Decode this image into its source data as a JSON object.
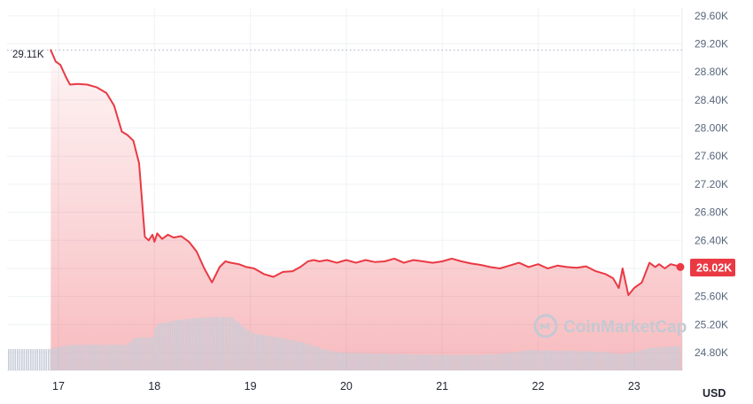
{
  "chart_data": {
    "type": "area",
    "x_tick_labels": [
      "17",
      "18",
      "19",
      "20",
      "21",
      "22",
      "23"
    ],
    "y_tick_labels": [
      "29.60K",
      "29.20K",
      "28.80K",
      "28.40K",
      "28.00K",
      "27.60K",
      "27.20K",
      "26.80K",
      "26.40K",
      "26.00K",
      "25.60K",
      "25.20K",
      "24.80K"
    ],
    "ylim": [
      24.8,
      29.6
    ],
    "y_unit_label": "USD",
    "start_value_label": "29.11K",
    "last_value_label": "26.02K",
    "grid": true,
    "series": [
      {
        "metric": "price_k_usd",
        "x_day": [
          16.92,
          16.97,
          17.02,
          17.08,
          17.12,
          17.2,
          17.3,
          17.4,
          17.5,
          17.58,
          17.66,
          17.72,
          17.78,
          17.84,
          17.9,
          17.94,
          17.98,
          18.0,
          18.03,
          18.08,
          18.14,
          18.2,
          18.28,
          18.36,
          18.44,
          18.52,
          18.6,
          18.68,
          18.74,
          18.8,
          18.88,
          18.96,
          19.04,
          19.14,
          19.24,
          19.34,
          19.44,
          19.52,
          19.6,
          19.66,
          19.72,
          19.8,
          19.9,
          20.0,
          20.1,
          20.2,
          20.3,
          20.4,
          20.5,
          20.6,
          20.7,
          20.8,
          20.9,
          21.0,
          21.1,
          21.2,
          21.3,
          21.4,
          21.5,
          21.6,
          21.7,
          21.8,
          21.9,
          22.0,
          22.1,
          22.2,
          22.3,
          22.4,
          22.5,
          22.6,
          22.7,
          22.78,
          22.84,
          22.88,
          22.94,
          23.0,
          23.08,
          23.16,
          23.22,
          23.26,
          23.32,
          23.38,
          23.44,
          23.5
        ],
        "values": [
          29.11,
          28.95,
          28.9,
          28.72,
          28.62,
          28.63,
          28.62,
          28.58,
          28.5,
          28.32,
          27.95,
          27.9,
          27.82,
          27.5,
          26.45,
          26.4,
          26.48,
          26.38,
          26.5,
          26.42,
          26.48,
          26.44,
          26.46,
          26.38,
          26.24,
          26.0,
          25.8,
          26.02,
          26.1,
          26.08,
          26.06,
          26.02,
          26.0,
          25.92,
          25.88,
          25.95,
          25.96,
          26.02,
          26.1,
          26.12,
          26.1,
          26.12,
          26.08,
          26.12,
          26.08,
          26.12,
          26.09,
          26.1,
          26.14,
          26.08,
          26.12,
          26.1,
          26.08,
          26.1,
          26.14,
          26.1,
          26.07,
          26.05,
          26.02,
          26.0,
          26.04,
          26.08,
          26.02,
          26.06,
          26.0,
          26.04,
          26.02,
          26.01,
          26.03,
          25.96,
          25.92,
          25.86,
          25.72,
          26.0,
          25.62,
          25.72,
          25.8,
          26.08,
          26.02,
          26.06,
          26.0,
          26.06,
          26.04,
          26.02
        ]
      },
      {
        "metric": "volume_relative",
        "x_day": [
          16.6,
          16.9,
          16.95,
          17.1,
          17.4,
          17.7,
          17.8,
          17.98,
          18.0,
          18.03,
          18.1,
          18.2,
          18.4,
          18.6,
          18.8,
          18.95,
          19.05,
          19.2,
          19.35,
          19.55,
          19.75,
          19.9,
          20.2,
          20.5,
          20.7,
          21.0,
          21.3,
          21.5,
          21.7,
          21.9,
          22.2,
          22.5,
          22.7,
          22.85,
          23.0,
          23.15,
          23.3,
          23.5
        ],
        "values": [
          0.4,
          0.4,
          0.42,
          0.48,
          0.48,
          0.48,
          0.62,
          0.62,
          0.8,
          0.88,
          0.9,
          0.94,
          0.98,
          1.0,
          1.0,
          0.78,
          0.68,
          0.64,
          0.6,
          0.52,
          0.4,
          0.34,
          0.32,
          0.31,
          0.3,
          0.29,
          0.29,
          0.3,
          0.33,
          0.38,
          0.37,
          0.36,
          0.34,
          0.31,
          0.34,
          0.42,
          0.44,
          0.46
        ]
      }
    ],
    "colors": {
      "line": "#ea3943",
      "fill": "#ea3943",
      "volume": "#c8cdd8",
      "grid": "#eff2f5",
      "axis_text": "#58667e",
      "watermark": "#c4c9d3"
    }
  },
  "watermark": {
    "text": "CoinMarketCap",
    "icon": "coinmarketcap-logo-icon"
  }
}
